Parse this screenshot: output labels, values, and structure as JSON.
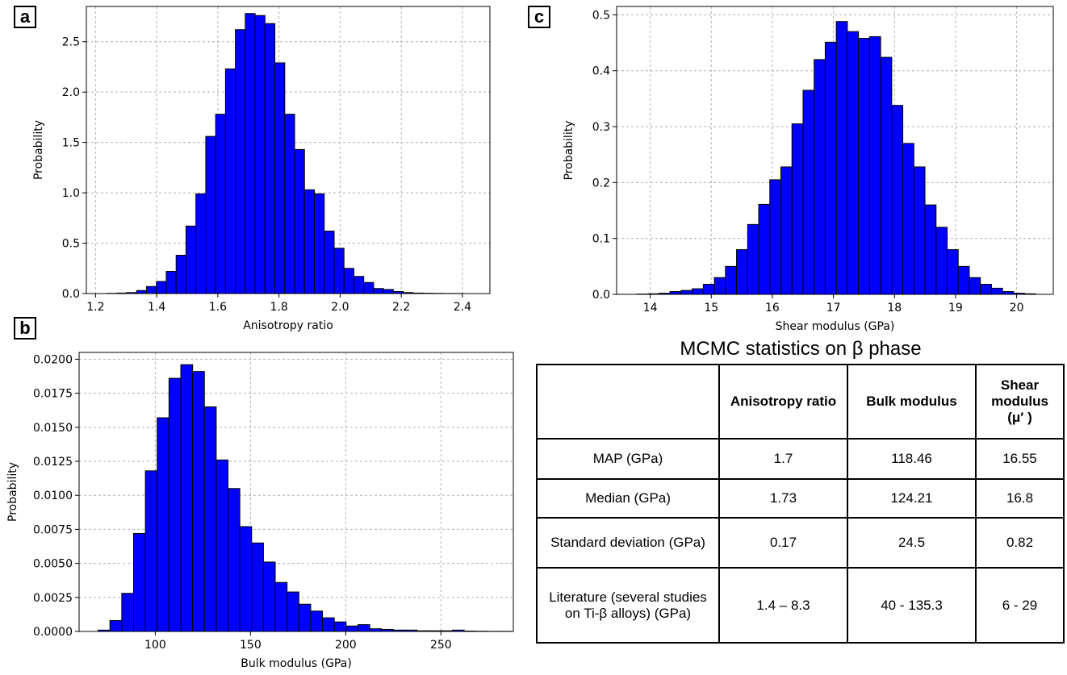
{
  "panels": {
    "a": "a",
    "b": "b",
    "c": "c"
  },
  "chart_data": [
    {
      "type": "bar",
      "panel": "a",
      "xlabel": "Anisotropy ratio",
      "ylabel": "Probability",
      "xlim": [
        1.17,
        2.49
      ],
      "ylim": [
        0,
        2.85
      ],
      "xticks": [
        1.2,
        1.4,
        1.6,
        1.8,
        2.0,
        2.2,
        2.4
      ],
      "xtick_labels": [
        "1.2",
        "1.4",
        "1.6",
        "1.8",
        "2.0",
        "2.2",
        "2.4"
      ],
      "yticks": [
        0.0,
        0.5,
        1.0,
        1.5,
        2.0,
        2.5
      ],
      "ytick_labels": [
        "0.0",
        "0.5",
        "1.0",
        "1.5",
        "2.0",
        "2.5"
      ],
      "grid": true,
      "bin_start": 1.2375,
      "bin_width": 0.0323,
      "values": [
        0.002,
        0.005,
        0.01,
        0.03,
        0.07,
        0.12,
        0.22,
        0.38,
        0.67,
        0.99,
        1.56,
        1.78,
        2.23,
        2.62,
        2.78,
        2.76,
        2.68,
        2.29,
        1.78,
        1.43,
        1.03,
        0.99,
        0.62,
        0.45,
        0.25,
        0.17,
        0.11,
        0.05,
        0.04,
        0.02,
        0.01,
        0.005,
        0.003,
        0.002,
        0.001,
        0.001
      ]
    },
    {
      "type": "bar",
      "panel": "b",
      "xlabel": "Bulk modulus (GPa)",
      "ylabel": "Probability",
      "xlim": [
        60,
        288
      ],
      "ylim": [
        0,
        0.0205
      ],
      "xticks": [
        100,
        150,
        200,
        250
      ],
      "xtick_labels": [
        "100",
        "150",
        "200",
        "250"
      ],
      "yticks": [
        0.0,
        0.0025,
        0.005,
        0.0075,
        0.01,
        0.0125,
        0.015,
        0.0175,
        0.02
      ],
      "ytick_labels": [
        "0.0000",
        "0.0025",
        "0.0050",
        "0.0075",
        "0.0100",
        "0.0125",
        "0.0150",
        "0.0175",
        "0.0200"
      ],
      "grid": true,
      "bin_start": 70,
      "bin_width": 6.2,
      "values": [
        0.0001,
        0.0008,
        0.0028,
        0.0072,
        0.0118,
        0.0157,
        0.0186,
        0.0196,
        0.0191,
        0.0165,
        0.0126,
        0.0105,
        0.0077,
        0.0065,
        0.0051,
        0.0036,
        0.0029,
        0.002,
        0.0015,
        0.001,
        0.0007,
        0.0004,
        0.0005,
        0.0002,
        0.00015,
        0.0001,
        0.0001,
        5e-05,
        5e-05,
        5e-05,
        0.0001,
        3e-05,
        2e-05,
        1e-05,
        1e-05
      ]
    },
    {
      "type": "bar",
      "panel": "c",
      "xlabel": "Shear modulus (GPa)",
      "ylabel": "Probability",
      "xlim": [
        13.45,
        20.6
      ],
      "ylim": [
        0,
        0.515
      ],
      "xticks": [
        14,
        15,
        16,
        17,
        18,
        19,
        20
      ],
      "xtick_labels": [
        "14",
        "15",
        "16",
        "17",
        "18",
        "19",
        "20"
      ],
      "yticks": [
        0.0,
        0.1,
        0.2,
        0.3,
        0.4,
        0.5
      ],
      "ytick_labels": [
        "0.0",
        "0.1",
        "0.2",
        "0.3",
        "0.4",
        "0.5"
      ],
      "grid": true,
      "bin_start": 13.78,
      "bin_width": 0.1815,
      "values": [
        0.0005,
        0.001,
        0.002,
        0.005,
        0.007,
        0.01,
        0.018,
        0.03,
        0.05,
        0.08,
        0.125,
        0.161,
        0.205,
        0.228,
        0.305,
        0.365,
        0.42,
        0.451,
        0.488,
        0.47,
        0.458,
        0.461,
        0.424,
        0.338,
        0.27,
        0.228,
        0.16,
        0.12,
        0.08,
        0.05,
        0.03,
        0.018,
        0.011,
        0.005,
        0.002,
        0.001
      ]
    }
  ],
  "table": {
    "title": "MCMC statistics on β phase",
    "headers": [
      "",
      "Anisotropy ratio",
      "Bulk modulus",
      "Shear modulus (μ′ )"
    ],
    "rows": [
      [
        "MAP (GPa)",
        "1.7",
        "118.46",
        "16.55"
      ],
      [
        "Median (GPa)",
        "1.73",
        "124.21",
        "16.8"
      ],
      [
        "Standard deviation (GPa)",
        "0.17",
        "24.5",
        "0.82"
      ],
      [
        "Literature (several studies on Ti-β alloys) (GPa)",
        "1.4 – 8.3",
        "40 - 135.3",
        "6 - 29"
      ]
    ]
  },
  "colors": {
    "bar_fill": "#0000ff",
    "bar_edge": "#000000",
    "grid": "#b0b0b0"
  }
}
